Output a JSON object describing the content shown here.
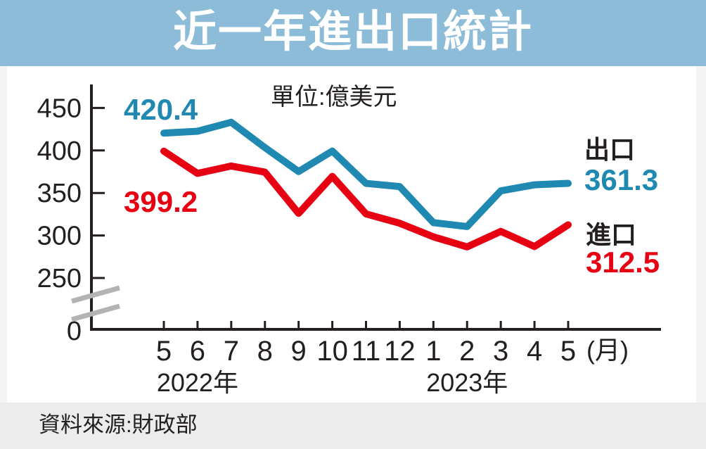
{
  "header": {
    "title": "近一年進出口統計"
  },
  "unit_label": "單位:億美元",
  "footer": {
    "source": "資料來源:財政部"
  },
  "colors": {
    "header_bg": "#8cbcd8",
    "footer_bg": "#ececec",
    "export_line": "#1f89b2",
    "import_line": "#e60012",
    "axis": "#231f20",
    "axis_break": "#b3b3b3"
  },
  "chart_data": {
    "type": "line",
    "title": "近一年進出口統計",
    "unit": "億美元",
    "x_tick_labels": [
      "5",
      "6",
      "7",
      "8",
      "9",
      "10",
      "11",
      "12",
      "1",
      "2",
      "3",
      "4",
      "5"
    ],
    "x_axis_suffix": "(月)",
    "year_labels": [
      {
        "text": "2022年",
        "month_index": 1
      },
      {
        "text": "2023年",
        "month_index": 9
      }
    ],
    "y_ticks": [
      450,
      400,
      350,
      300,
      250
    ],
    "y_zero_label": "0",
    "axis_break": true,
    "ylim_shown": [
      250,
      450
    ],
    "grid": false,
    "series": [
      {
        "name": "出口",
        "color": "#1f89b2",
        "values": [
          420.4,
          422.6,
          433.2,
          403.4,
          375.2,
          399.3,
          361.3,
          357.5,
          315.1,
          310.5,
          352.5,
          359.6,
          361.3
        ],
        "start_label": "420.4",
        "end_label": "361.3"
      },
      {
        "name": "進口",
        "color": "#e60012",
        "values": [
          399.2,
          373.0,
          381.7,
          374.5,
          326.0,
          369.5,
          325.4,
          314.4,
          298.4,
          286.6,
          304.8,
          287.0,
          312.5
        ],
        "start_label": "399.2",
        "end_label": "312.5"
      }
    ]
  }
}
